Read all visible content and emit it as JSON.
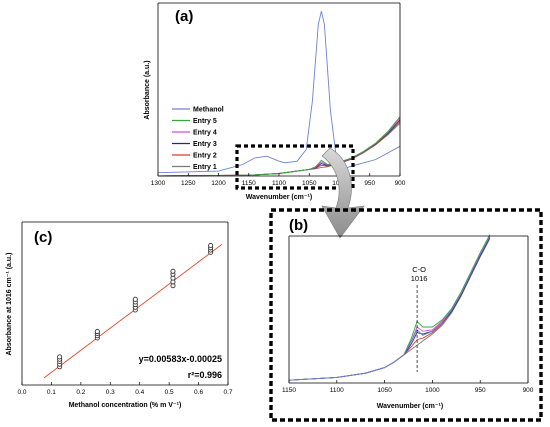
{
  "colors": {
    "methanol": "#6f7fd6",
    "entry5": "#33a833",
    "entry4": "#d64fd6",
    "entry3": "#1f2a8a",
    "entry2": "#e03a2a",
    "entry1": "#7a7a7a",
    "fit_line": "#e04a2a",
    "points": "#333333"
  },
  "chart_data": [
    {
      "panel": "(a)",
      "type": "line",
      "xlabel": "Wavenumber (cm⁻¹)",
      "ylabel": "Absorbance (a.u.)",
      "xlim": [
        1300,
        900
      ],
      "x_reversed": true,
      "xticks": [
        "1300",
        "1250",
        "1200",
        "1150",
        "1100",
        "1050",
        "1000",
        "950",
        "900"
      ],
      "legend_position": "left",
      "series": [
        {
          "name": "Methanol",
          "x": [
            1300,
            1200,
            1160,
            1140,
            1120,
            1100,
            1090,
            1070,
            1055,
            1045,
            1035,
            1030,
            1025,
            1015,
            1005,
            995,
            980,
            960,
            940,
            920,
            900
          ],
          "y": [
            0.02,
            0.03,
            0.07,
            0.11,
            0.12,
            0.09,
            0.08,
            0.09,
            0.16,
            0.45,
            0.92,
            1.0,
            0.92,
            0.4,
            0.1,
            0.04,
            0.06,
            0.08,
            0.1,
            0.14,
            0.18
          ]
        },
        {
          "name": "Entry 5",
          "x": [
            1300,
            1150,
            1100,
            1050,
            1040,
            1030,
            1020,
            1010,
            1000,
            980,
            960,
            940,
            920,
            900
          ],
          "y": [
            0.0,
            0.005,
            0.015,
            0.04,
            0.055,
            0.095,
            0.07,
            0.075,
            0.085,
            0.11,
            0.15,
            0.2,
            0.27,
            0.36
          ]
        },
        {
          "name": "Entry 4",
          "x": [
            1300,
            1150,
            1100,
            1050,
            1040,
            1030,
            1020,
            1010,
            1000,
            980,
            960,
            940,
            920,
            900
          ],
          "y": [
            0.0,
            0.005,
            0.015,
            0.04,
            0.052,
            0.085,
            0.066,
            0.073,
            0.083,
            0.108,
            0.148,
            0.198,
            0.265,
            0.35
          ]
        },
        {
          "name": "Entry 3",
          "x": [
            1300,
            1150,
            1100,
            1050,
            1040,
            1030,
            1020,
            1010,
            1000,
            980,
            960,
            940,
            920,
            900
          ],
          "y": [
            0.0,
            0.005,
            0.015,
            0.04,
            0.05,
            0.075,
            0.063,
            0.071,
            0.081,
            0.106,
            0.146,
            0.195,
            0.26,
            0.34
          ]
        },
        {
          "name": "Entry 2",
          "x": [
            1300,
            1150,
            1100,
            1050,
            1040,
            1030,
            1020,
            1010,
            1000,
            980,
            960,
            940,
            920,
            900
          ],
          "y": [
            0.0,
            0.005,
            0.015,
            0.04,
            0.047,
            0.065,
            0.06,
            0.069,
            0.079,
            0.104,
            0.144,
            0.192,
            0.255,
            0.33
          ]
        },
        {
          "name": "Entry 1",
          "x": [
            1300,
            1150,
            1100,
            1050,
            1040,
            1030,
            1020,
            1010,
            1000,
            980,
            960,
            940,
            920,
            900
          ],
          "y": [
            0.0,
            0.005,
            0.015,
            0.04,
            0.044,
            0.052,
            0.056,
            0.066,
            0.077,
            0.102,
            0.142,
            0.19,
            0.25,
            0.32
          ]
        }
      ]
    },
    {
      "panel": "(b)",
      "type": "line",
      "xlabel": "Wavenumber (cm⁻¹)",
      "xlim": [
        1150,
        900
      ],
      "x_reversed": true,
      "xticks": [
        "1150",
        "1100",
        "1050",
        "1000",
        "950",
        "900"
      ],
      "annotation": {
        "label": "C-O",
        "value": "1016",
        "x": 1016
      },
      "series": [
        {
          "name": "Methanol",
          "x": [
            1150,
            1100,
            1070,
            1050,
            1040,
            1030,
            1022,
            1016,
            1010,
            1000,
            990,
            980,
            970,
            960,
            950,
            940
          ],
          "y": [
            0.02,
            0.04,
            0.07,
            0.11,
            0.15,
            0.2,
            0.3,
            0.38,
            0.34,
            0.37,
            0.43,
            0.52,
            0.64,
            0.78,
            0.92,
            1.05
          ]
        },
        {
          "name": "Entry 5",
          "x": [
            1150,
            1100,
            1070,
            1050,
            1040,
            1030,
            1022,
            1016,
            1010,
            1000,
            990,
            980,
            970,
            960,
            950,
            940
          ],
          "y": [
            0.02,
            0.04,
            0.07,
            0.11,
            0.15,
            0.2,
            0.32,
            0.44,
            0.4,
            0.4,
            0.45,
            0.53,
            0.65,
            0.79,
            0.93,
            1.06
          ]
        },
        {
          "name": "Entry 4",
          "x": [
            1150,
            1100,
            1070,
            1050,
            1040,
            1030,
            1022,
            1016,
            1010,
            1000,
            990,
            980,
            970,
            960,
            950,
            940
          ],
          "y": [
            0.02,
            0.04,
            0.07,
            0.11,
            0.15,
            0.2,
            0.3,
            0.4,
            0.37,
            0.38,
            0.44,
            0.52,
            0.64,
            0.78,
            0.92,
            1.05
          ]
        },
        {
          "name": "Entry 3",
          "x": [
            1150,
            1100,
            1070,
            1050,
            1040,
            1030,
            1022,
            1016,
            1010,
            1000,
            990,
            980,
            970,
            960,
            950,
            940
          ],
          "y": [
            0.02,
            0.04,
            0.07,
            0.11,
            0.15,
            0.2,
            0.28,
            0.36,
            0.35,
            0.37,
            0.43,
            0.51,
            0.63,
            0.77,
            0.91,
            1.04
          ]
        },
        {
          "name": "Entry 2",
          "x": [
            1150,
            1100,
            1070,
            1050,
            1040,
            1030,
            1022,
            1016,
            1010,
            1000,
            990,
            980,
            970,
            960,
            950,
            940
          ],
          "y": [
            0.02,
            0.04,
            0.07,
            0.11,
            0.15,
            0.2,
            0.26,
            0.31,
            0.32,
            0.36,
            0.42,
            0.51,
            0.63,
            0.77,
            0.91,
            1.04
          ]
        },
        {
          "name": "Entry 1",
          "x": [
            1150,
            1100,
            1070,
            1050,
            1040,
            1030,
            1022,
            1016,
            1010,
            1000,
            990,
            980,
            970,
            960,
            950,
            940
          ],
          "y": [
            0.02,
            0.04,
            0.07,
            0.11,
            0.15,
            0.2,
            0.24,
            0.27,
            0.3,
            0.35,
            0.41,
            0.5,
            0.62,
            0.76,
            0.9,
            1.03
          ]
        }
      ]
    },
    {
      "panel": "(c)",
      "type": "scatter",
      "xlabel": "Methanol concentration (% m V⁻¹)",
      "ylabel": "Absorbance at 1016 cm⁻¹ (a.u.)",
      "xlim": [
        0.0,
        0.7
      ],
      "ylim": [
        0.0,
        0.0043
      ],
      "xticks": [
        "0.0",
        "0.1",
        "0.2",
        "0.3",
        "0.4",
        "0.5",
        "0.6",
        "0.7"
      ],
      "points": [
        {
          "x": 0.128,
          "y": 0.00048
        },
        {
          "x": 0.128,
          "y": 0.00055
        },
        {
          "x": 0.128,
          "y": 0.00062
        },
        {
          "x": 0.128,
          "y": 0.00068
        },
        {
          "x": 0.128,
          "y": 0.00074
        },
        {
          "x": 0.256,
          "y": 0.00124
        },
        {
          "x": 0.256,
          "y": 0.0013
        },
        {
          "x": 0.256,
          "y": 0.00136
        },
        {
          "x": 0.256,
          "y": 0.00141
        },
        {
          "x": 0.385,
          "y": 0.00198
        },
        {
          "x": 0.385,
          "y": 0.00205
        },
        {
          "x": 0.385,
          "y": 0.00212
        },
        {
          "x": 0.385,
          "y": 0.00219
        },
        {
          "x": 0.385,
          "y": 0.00226
        },
        {
          "x": 0.513,
          "y": 0.00262
        },
        {
          "x": 0.513,
          "y": 0.00272
        },
        {
          "x": 0.513,
          "y": 0.00282
        },
        {
          "x": 0.513,
          "y": 0.00292
        },
        {
          "x": 0.513,
          "y": 0.003
        },
        {
          "x": 0.641,
          "y": 0.0035
        },
        {
          "x": 0.641,
          "y": 0.00356
        },
        {
          "x": 0.641,
          "y": 0.00362
        },
        {
          "x": 0.641,
          "y": 0.00368
        }
      ],
      "fit": {
        "slope": 0.00583,
        "intercept": -0.00025,
        "x_range": [
          0.075,
          0.68
        ]
      },
      "equation": "y=0.00583x-0.00025",
      "r2": "r²=0.996"
    }
  ]
}
